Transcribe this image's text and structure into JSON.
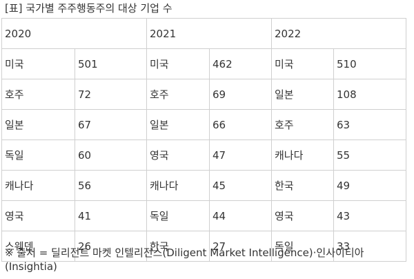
{
  "caption": "[표] 국가별 주주행동주의 대상 기업 수",
  "years": [
    "2020",
    "2021",
    "2022"
  ],
  "rows": [
    [
      {
        "country": "미국",
        "count": "501"
      },
      {
        "country": "미국",
        "count": "462"
      },
      {
        "country": "미국",
        "count": "510"
      }
    ],
    [
      {
        "country": "호주",
        "count": "72"
      },
      {
        "country": "호주",
        "count": "69"
      },
      {
        "country": "일본",
        "count": "108"
      }
    ],
    [
      {
        "country": "일본",
        "count": "67"
      },
      {
        "country": "일본",
        "count": "66"
      },
      {
        "country": "호주",
        "count": "63"
      }
    ],
    [
      {
        "country": "독일",
        "count": "60"
      },
      {
        "country": "영국",
        "count": "47"
      },
      {
        "country": "캐나다",
        "count": "55"
      }
    ],
    [
      {
        "country": "캐나다",
        "count": "56"
      },
      {
        "country": "캐나다",
        "count": "45"
      },
      {
        "country": "한국",
        "count": "49"
      }
    ],
    [
      {
        "country": "영국",
        "count": "41"
      },
      {
        "country": "독일",
        "count": "44"
      },
      {
        "country": "영국",
        "count": "43"
      }
    ],
    [
      {
        "country": "스웨덴",
        "count": "26"
      },
      {
        "country": "한국",
        "count": "27"
      },
      {
        "country": "독일",
        "count": "33"
      }
    ]
  ],
  "source_note": "※ 출처 = 딜리전트 마켓 인텔리전스(Diligent Market Intelligence)·인사이티아(Insightia)"
}
